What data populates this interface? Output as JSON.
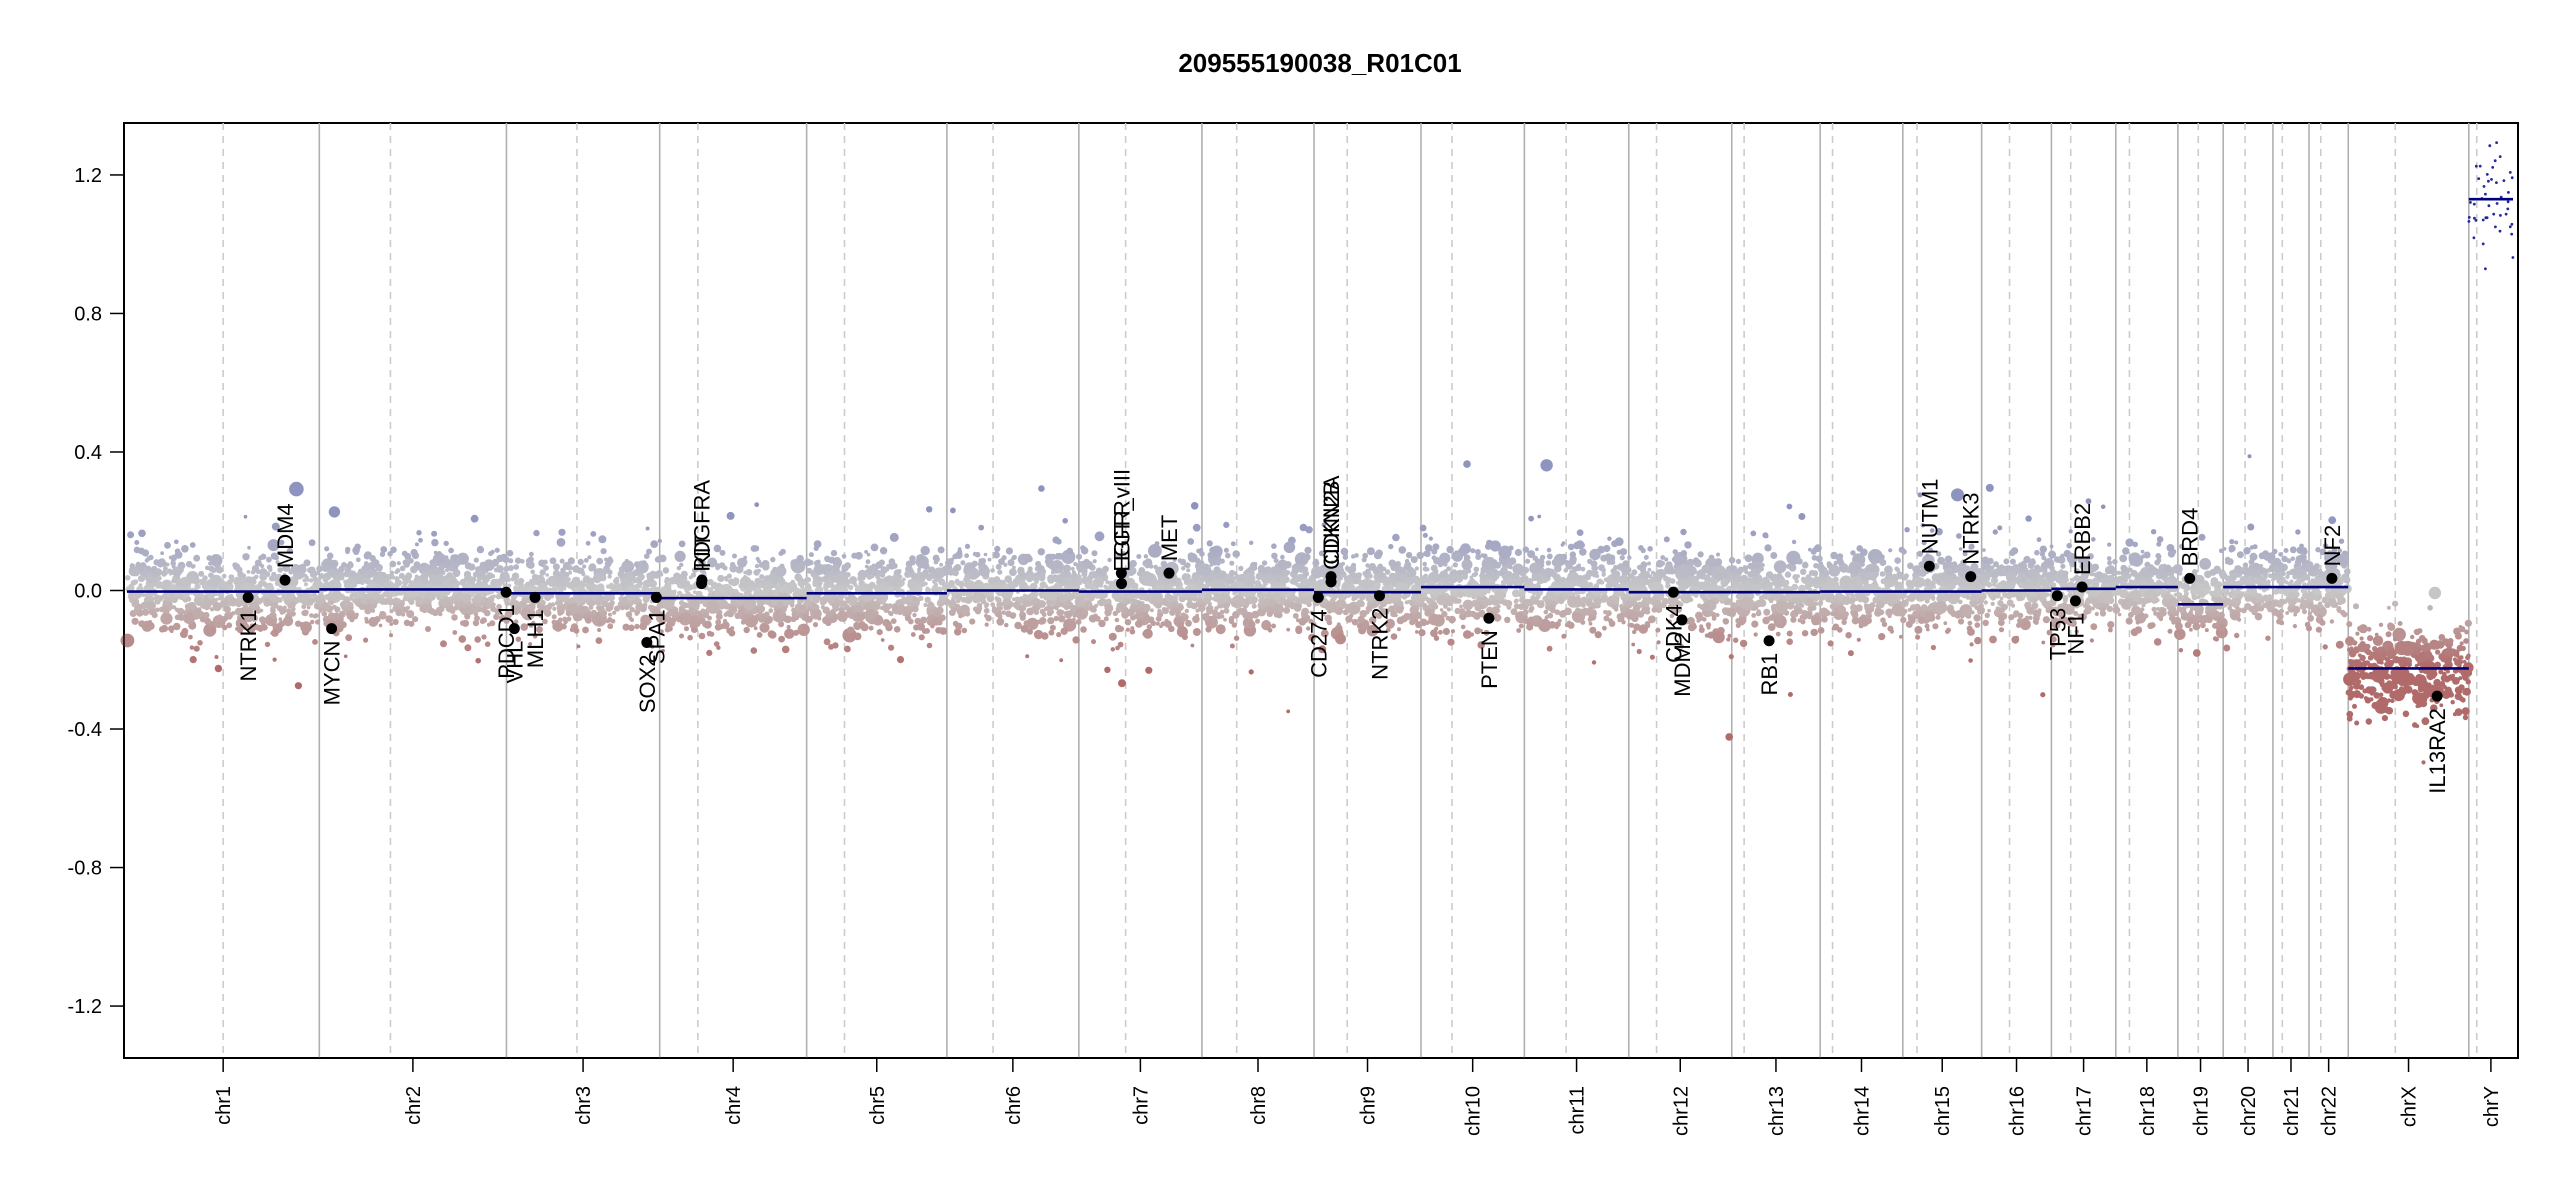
{
  "chart_data": {
    "type": "scatter",
    "title": "209555190038_R01C01",
    "xlabel": "",
    "ylabel": "",
    "ylim": [
      -1.35,
      1.35
    ],
    "y_ticks": [
      -1.2,
      -0.8,
      -0.4,
      0.0,
      0.4,
      0.8,
      1.2
    ],
    "y_tick_labels": [
      "-1.2",
      "-0.8",
      "-0.4",
      "0.0",
      "0.4",
      "0.8",
      "1.2"
    ],
    "grid": false,
    "colors": {
      "gain": "#8f93c0",
      "loss": "#b06a6a",
      "neutral": "#c8c8c8",
      "segment": "#00007f",
      "gene_point": "#000000",
      "chrom_boundary": "#b0b0b0",
      "centromere": "#cccccc"
    },
    "chromosomes": [
      {
        "name": "chr1",
        "size": 248.9,
        "seg": -0.003
      },
      {
        "name": "chr2",
        "size": 242.2,
        "seg": 0.003
      },
      {
        "name": "chr3",
        "size": 198.3,
        "seg": -0.008
      },
      {
        "name": "chr4",
        "size": 190.2,
        "seg": -0.022
      },
      {
        "name": "chr5",
        "size": 181.5,
        "seg": -0.008
      },
      {
        "name": "chr6",
        "size": 170.8,
        "seg": 0.0
      },
      {
        "name": "chr7",
        "size": 159.3,
        "seg": -0.003
      },
      {
        "name": "chr8",
        "size": 145.1,
        "seg": 0.002
      },
      {
        "name": "chr9",
        "size": 138.4,
        "seg": -0.005
      },
      {
        "name": "chr10",
        "size": 133.8,
        "seg": 0.01
      },
      {
        "name": "chr11",
        "size": 135.1,
        "seg": 0.003
      },
      {
        "name": "chr12",
        "size": 133.3,
        "seg": -0.005
      },
      {
        "name": "chr13",
        "size": 114.4,
        "seg": -0.005
      },
      {
        "name": "chr14",
        "size": 107.0,
        "seg": -0.003
      },
      {
        "name": "chr15",
        "size": 102.0,
        "seg": -0.003
      },
      {
        "name": "chr16",
        "size": 90.3,
        "seg": 0.0
      },
      {
        "name": "chr17",
        "size": 83.3,
        "seg": 0.005
      },
      {
        "name": "chr18",
        "size": 80.4,
        "seg": 0.01
      },
      {
        "name": "chr19",
        "size": 58.6,
        "seg": -0.04
      },
      {
        "name": "chr20",
        "size": 64.4,
        "seg": 0.01
      },
      {
        "name": "chr21",
        "size": 46.7,
        "seg": 0.01
      },
      {
        "name": "chr22",
        "size": 50.8,
        "seg": 0.01
      },
      {
        "name": "chrX",
        "size": 156.0,
        "seg": -0.225
      },
      {
        "name": "chrY",
        "size": 57.2,
        "seg": 1.13
      }
    ],
    "genes": [
      {
        "name": "NTRK1",
        "chr": "chr1",
        "pos": 156.8,
        "y": -0.02,
        "label": "below"
      },
      {
        "name": "MDM4",
        "chr": "chr1",
        "pos": 204.5,
        "y": 0.03,
        "label": "above"
      },
      {
        "name": "MYCN",
        "chr": "chr2",
        "pos": 15.9,
        "y": -0.11,
        "label": "below"
      },
      {
        "name": "PDCD1",
        "chr": "chr2",
        "pos": 241.8,
        "y": -0.005,
        "label": "below"
      },
      {
        "name": "VHL",
        "chr": "chr3",
        "pos": 10.2,
        "y": -0.11,
        "label": "below"
      },
      {
        "name": "MLH1",
        "chr": "chr3",
        "pos": 37.0,
        "y": -0.02,
        "label": "below"
      },
      {
        "name": "SOX2",
        "chr": "chr3",
        "pos": 181.7,
        "y": -0.15,
        "label": "below"
      },
      {
        "name": "SPA1",
        "chr": "chr3",
        "pos": 194.0,
        "y": -0.02,
        "label": "below"
      },
      {
        "name": "KIT",
        "chr": "chr4",
        "pos": 54.7,
        "y": 0.03,
        "label": "above"
      },
      {
        "name": "PDGFRA",
        "chr": "chr4",
        "pos": 54.2,
        "y": 0.02,
        "label": "above"
      },
      {
        "name": "EGFR",
        "chr": "chr7",
        "pos": 55.0,
        "y": 0.05,
        "label": "above"
      },
      {
        "name": "EGFR_vIII",
        "chr": "chr7",
        "pos": 55.2,
        "y": 0.02,
        "label": "above"
      },
      {
        "name": "MET",
        "chr": "chr7",
        "pos": 116.7,
        "y": 0.05,
        "label": "above"
      },
      {
        "name": "CD274",
        "chr": "chr9",
        "pos": 5.5,
        "y": -0.02,
        "label": "below"
      },
      {
        "name": "CDKN2A",
        "chr": "chr9",
        "pos": 21.97,
        "y": 0.04,
        "label": "above"
      },
      {
        "name": "CDKN2B",
        "chr": "chr9",
        "pos": 22.0,
        "y": 0.025,
        "label": "above"
      },
      {
        "name": "NTRK2",
        "chr": "chr9",
        "pos": 84.7,
        "y": -0.015,
        "label": "below"
      },
      {
        "name": "PTEN",
        "chr": "chr10",
        "pos": 87.9,
        "y": -0.08,
        "label": "below"
      },
      {
        "name": "CDK4",
        "chr": "chr12",
        "pos": 57.7,
        "y": -0.005,
        "label": "below"
      },
      {
        "name": "MDM2",
        "chr": "chr12",
        "pos": 68.8,
        "y": -0.085,
        "label": "below"
      },
      {
        "name": "RB1",
        "chr": "chr13",
        "pos": 48.3,
        "y": -0.145,
        "label": "below"
      },
      {
        "name": "NUTM1",
        "chr": "chr15",
        "pos": 34.3,
        "y": 0.07,
        "label": "above"
      },
      {
        "name": "NTRK3",
        "chr": "chr15",
        "pos": 87.9,
        "y": 0.04,
        "label": "above"
      },
      {
        "name": "TP53",
        "chr": "chr17",
        "pos": 7.6,
        "y": -0.015,
        "label": "below"
      },
      {
        "name": "NF1",
        "chr": "chr17",
        "pos": 31.1,
        "y": -0.03,
        "label": "below"
      },
      {
        "name": "ERBB2",
        "chr": "chr17",
        "pos": 39.7,
        "y": 0.01,
        "label": "above"
      },
      {
        "name": "BRD4",
        "chr": "chr19",
        "pos": 15.3,
        "y": 0.035,
        "label": "above"
      },
      {
        "name": "NF2",
        "chr": "chr22",
        "pos": 29.6,
        "y": 0.035,
        "label": "above"
      },
      {
        "name": "IL13RA2",
        "chr": "chrX",
        "pos": 115.0,
        "y": -0.305,
        "label": "below"
      }
    ],
    "legend": "none"
  }
}
